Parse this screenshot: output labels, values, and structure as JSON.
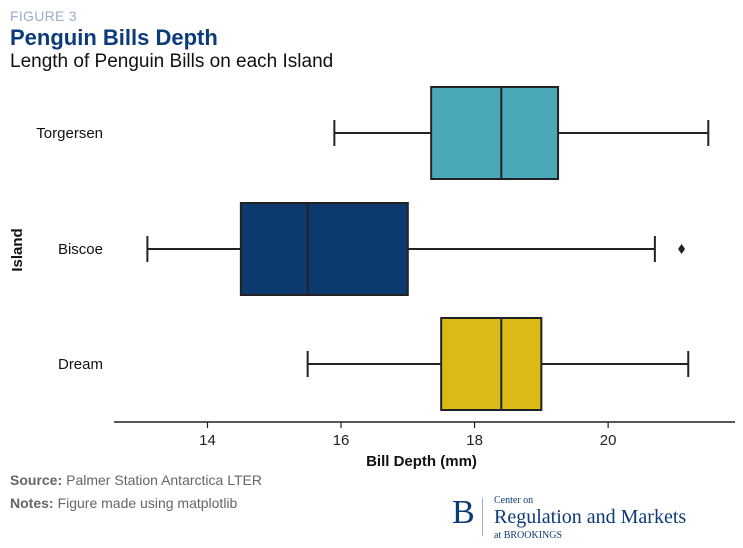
{
  "figure_label": "FIGURE 3",
  "title": "Penguin Bills Depth",
  "subtitle": "Length of Penguin Bills on each Island",
  "chart_data": {
    "type": "boxplot",
    "orientation": "horizontal",
    "xlabel": "Bill Depth (mm)",
    "ylabel": "Island",
    "xlim": [
      12.6,
      21.9
    ],
    "xticks": [
      14,
      16,
      18,
      20
    ],
    "grid": false,
    "categories": [
      "Torgersen",
      "Biscoe",
      "Dream"
    ],
    "boxes": [
      {
        "category": "Torgersen",
        "whisker_low": 15.9,
        "q1": 17.35,
        "median": 18.4,
        "q3": 19.25,
        "whisker_high": 21.5,
        "outliers": [],
        "color": "#4ba8b8"
      },
      {
        "category": "Biscoe",
        "whisker_low": 13.1,
        "q1": 14.5,
        "median": 15.5,
        "q3": 17.0,
        "whisker_high": 20.7,
        "outliers": [
          21.1
        ],
        "color": "#0d3a6e"
      },
      {
        "category": "Dream",
        "whisker_low": 15.5,
        "q1": 17.5,
        "median": 18.4,
        "q3": 19.0,
        "whisker_high": 21.2,
        "outliers": [],
        "color": "#d9ba16"
      }
    ]
  },
  "footer": {
    "source_label": "Source:",
    "source_text": "Palmer Station Antarctica LTER",
    "notes_label": "Notes:",
    "notes_text": "Figure made using matplotlib"
  },
  "brand": {
    "initial": "B",
    "small_text": "Center on",
    "main_text": "Regulation and Markets",
    "at_text": "at BROOKINGS"
  }
}
